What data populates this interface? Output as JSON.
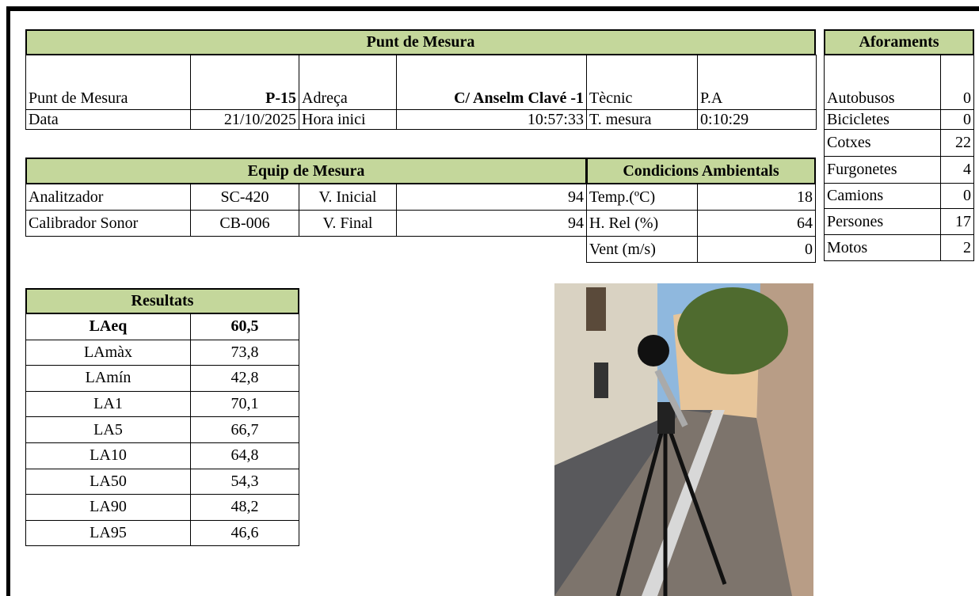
{
  "punt_de_mesura": {
    "title": "Punt de Mesura",
    "rows": [
      [
        "Punt de Mesura",
        "P-15",
        "Adreça",
        "C/ Anselm Clavé -1",
        "Tècnic",
        "P.A"
      ],
      [
        "Data",
        "21/10/2025",
        "Hora inici",
        "10:57:33",
        "T. mesura",
        "0:10:29"
      ]
    ]
  },
  "aforaments": {
    "title": "Aforaments",
    "rows": [
      [
        "Autobusos",
        0
      ],
      [
        "Bicicletes",
        0
      ],
      [
        "Cotxes",
        22
      ],
      [
        "Furgonetes",
        4
      ],
      [
        "Camions",
        0
      ],
      [
        "Persones",
        17
      ],
      [
        "Motos",
        2
      ]
    ]
  },
  "equip_de_mesura": {
    "title": "Equip de Mesura",
    "rows": [
      [
        "Analitzador",
        "SC-420",
        "V. Inicial",
        94
      ],
      [
        "Calibrador Sonor",
        "CB-006",
        "V. Final",
        94
      ]
    ]
  },
  "condicions_ambientals": {
    "title": "Condicions Ambientals",
    "rows": [
      [
        "Temp.(ºC)",
        18
      ],
      [
        "H. Rel (%)",
        64
      ],
      [
        "Vent (m/s)",
        0
      ]
    ]
  },
  "resultats": {
    "title": "Resultats",
    "rows": [
      [
        "LAeq",
        "60,5"
      ],
      [
        "LAmàx",
        "73,8"
      ],
      [
        "LAmín",
        "42,8"
      ],
      [
        "LA1",
        "70,1"
      ],
      [
        "LA5",
        "66,7"
      ],
      [
        "LA10",
        "64,8"
      ],
      [
        "LA50",
        "54,3"
      ],
      [
        "LA90",
        "48,2"
      ],
      [
        "LA95",
        "46,6"
      ]
    ]
  }
}
